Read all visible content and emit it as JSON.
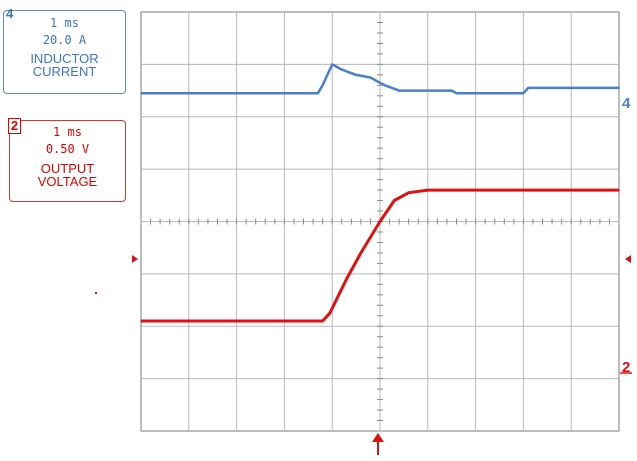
{
  "channels": [
    {
      "id": "ch4",
      "number": "4",
      "timebase": "1 ms",
      "scale": "20.0 A",
      "name_line1": "INDUCTOR",
      "name_line2": "CURRENT",
      "color": "#4a7fcb"
    },
    {
      "id": "ch2",
      "number": "2",
      "timebase": "1 ms",
      "scale": "0.50 V",
      "name_line1": "OUTPUT",
      "name_line2": "VOLTAGE",
      "color": "#e01010"
    }
  ],
  "markers": {
    "ch4_right": "4",
    "ch2_right": "2"
  },
  "chart_data": {
    "type": "line",
    "title": "",
    "xlabel": "",
    "ylabel": "",
    "grid": true,
    "x_divisions": 10,
    "y_divisions": 8,
    "x_range_div": [
      0,
      10
    ],
    "y_range_div": [
      -4,
      4
    ],
    "series": [
      {
        "name": "INDUCTOR CURRENT",
        "color": "#4a7fcb",
        "x": [
          0,
          3.7,
          3.8,
          4.0,
          4.2,
          4.5,
          4.8,
          5.1,
          5.4,
          6.5,
          6.6,
          8.0,
          8.1,
          10.0
        ],
        "y": [
          2.45,
          2.45,
          2.6,
          3.0,
          2.9,
          2.8,
          2.75,
          2.6,
          2.5,
          2.5,
          2.45,
          2.45,
          2.55,
          2.55
        ]
      },
      {
        "name": "OUTPUT VOLTAGE",
        "color": "#e01010",
        "x": [
          0,
          3.8,
          3.95,
          4.3,
          4.6,
          5.0,
          5.3,
          5.6,
          6.0,
          10.0
        ],
        "y": [
          -1.9,
          -1.9,
          -1.75,
          -1.1,
          -0.6,
          0.0,
          0.4,
          0.55,
          0.6,
          0.6
        ]
      }
    ]
  }
}
